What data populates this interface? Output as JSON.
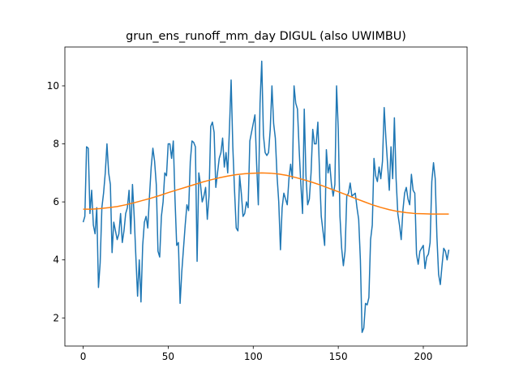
{
  "chart_data": {
    "type": "line",
    "title": "grun_ens_runoff_mm_day DIGUL (also UWIMBU)",
    "x": [
      0,
      1,
      2,
      3,
      4,
      5,
      6,
      7,
      8,
      9,
      10,
      11,
      12,
      13,
      14,
      15,
      16,
      17,
      18,
      19,
      20,
      21,
      22,
      23,
      24,
      25,
      26,
      27,
      28,
      29,
      30,
      31,
      32,
      33,
      34,
      35,
      36,
      37,
      38,
      39,
      40,
      41,
      42,
      43,
      44,
      45,
      46,
      47,
      48,
      49,
      50,
      51,
      52,
      53,
      54,
      55,
      56,
      57,
      58,
      59,
      60,
      61,
      62,
      63,
      64,
      65,
      66,
      67,
      68,
      69,
      70,
      71,
      72,
      73,
      74,
      75,
      76,
      77,
      78,
      79,
      80,
      81,
      82,
      83,
      84,
      85,
      86,
      87,
      88,
      89,
      90,
      91,
      92,
      93,
      94,
      95,
      96,
      97,
      98,
      99,
      100,
      101,
      102,
      103,
      104,
      105,
      106,
      107,
      108,
      109,
      110,
      111,
      112,
      113,
      114,
      115,
      116,
      117,
      118,
      119,
      120,
      121,
      122,
      123,
      124,
      125,
      126,
      127,
      128,
      129,
      130,
      131,
      132,
      133,
      134,
      135,
      136,
      137,
      138,
      139,
      140,
      141,
      142,
      143,
      144,
      145,
      146,
      147,
      148,
      149,
      150,
      151,
      152,
      153,
      154,
      155,
      156,
      157,
      158,
      159,
      160,
      161,
      162,
      163,
      164,
      165,
      166,
      167,
      168,
      169,
      170,
      171,
      172,
      173,
      174,
      175,
      176,
      177,
      178,
      179,
      180,
      181,
      182,
      183,
      184,
      185,
      186,
      187,
      188,
      189,
      190,
      191,
      192,
      193,
      194,
      195,
      196,
      197,
      198,
      199,
      200,
      201,
      202,
      203,
      204,
      205,
      206,
      207,
      208,
      209,
      210,
      211,
      212,
      213,
      214,
      215
    ],
    "series": [
      {
        "color": "#1f77b4",
        "values": [
          5.3,
          5.5,
          7.9,
          7.85,
          5.6,
          6.4,
          5.2,
          4.9,
          5.8,
          3.05,
          3.9,
          5.8,
          6.3,
          7.0,
          8.0,
          7.0,
          6.6,
          4.25,
          5.3,
          5.0,
          4.7,
          4.9,
          5.6,
          4.6,
          5.0,
          5.6,
          5.8,
          6.4,
          4.9,
          6.6,
          5.5,
          4.1,
          2.75,
          4.0,
          2.55,
          4.5,
          5.3,
          5.5,
          5.1,
          6.2,
          7.2,
          7.85,
          7.4,
          6.6,
          4.3,
          4.1,
          5.5,
          6.0,
          7.0,
          6.9,
          8.0,
          8.0,
          7.5,
          8.1,
          6.1,
          4.5,
          4.6,
          2.5,
          3.6,
          4.4,
          5.2,
          5.9,
          5.7,
          7.4,
          8.1,
          8.05,
          7.9,
          3.95,
          7.0,
          6.6,
          6.0,
          6.2,
          6.5,
          5.4,
          6.2,
          8.6,
          8.75,
          8.4,
          6.5,
          7.0,
          7.5,
          7.7,
          8.2,
          7.2,
          7.7,
          7.0,
          8.5,
          10.2,
          7.9,
          6.4,
          5.1,
          5.0,
          6.9,
          6.3,
          5.5,
          5.6,
          6.0,
          5.8,
          8.1,
          8.4,
          8.7,
          9.0,
          7.3,
          5.9,
          9.4,
          10.85,
          8.3,
          7.7,
          7.6,
          7.7,
          8.5,
          10.0,
          8.7,
          8.2,
          6.9,
          6.0,
          4.35,
          5.8,
          6.3,
          6.1,
          5.9,
          6.8,
          7.3,
          6.8,
          10.0,
          9.4,
          9.2,
          7.8,
          6.6,
          5.6,
          9.2,
          6.9,
          5.9,
          6.1,
          7.0,
          8.5,
          8.0,
          8.0,
          8.75,
          7.0,
          5.5,
          5.0,
          4.5,
          7.8,
          7.0,
          7.3,
          6.6,
          6.2,
          6.6,
          10.0,
          8.5,
          5.5,
          4.4,
          3.8,
          4.3,
          6.2,
          6.3,
          6.65,
          6.2,
          6.25,
          6.3,
          5.8,
          5.4,
          4.0,
          1.5,
          1.65,
          2.5,
          2.45,
          2.7,
          4.7,
          5.2,
          7.5,
          6.9,
          6.7,
          7.2,
          6.8,
          7.4,
          9.25,
          8.2,
          7.3,
          6.4,
          7.9,
          6.8,
          8.9,
          6.8,
          5.6,
          5.2,
          4.7,
          5.7,
          6.3,
          6.5,
          6.1,
          5.9,
          6.95,
          6.4,
          6.3,
          4.2,
          3.85,
          4.3,
          4.4,
          4.5,
          3.7,
          4.1,
          4.2,
          4.6,
          6.7,
          7.35,
          6.8,
          4.8,
          3.5,
          3.15,
          3.8,
          4.4,
          4.3,
          4.0,
          4.35
        ]
      },
      {
        "color": "#ff7f0e",
        "x": [
          0,
          5,
          10,
          15,
          20,
          25,
          30,
          35,
          40,
          45,
          50,
          55,
          60,
          65,
          70,
          75,
          80,
          85,
          90,
          95,
          100,
          105,
          110,
          115,
          120,
          125,
          130,
          135,
          140,
          145,
          150,
          155,
          160,
          165,
          170,
          175,
          180,
          185,
          190,
          195,
          200,
          205,
          210,
          215
        ],
        "values": [
          5.75,
          5.75,
          5.77,
          5.8,
          5.84,
          5.9,
          5.97,
          6.05,
          6.13,
          6.22,
          6.32,
          6.41,
          6.5,
          6.59,
          6.68,
          6.76,
          6.83,
          6.89,
          6.94,
          6.97,
          6.99,
          7.0,
          6.99,
          6.96,
          6.91,
          6.84,
          6.76,
          6.67,
          6.57,
          6.46,
          6.35,
          6.24,
          6.12,
          6.01,
          5.9,
          5.81,
          5.73,
          5.67,
          5.63,
          5.6,
          5.59,
          5.58,
          5.58,
          5.58
        ]
      }
    ],
    "xlim": [
      -10.75,
      225.75
    ],
    "ylim": [
      1.03,
      11.34
    ],
    "xticks": [
      0,
      50,
      100,
      150,
      200
    ],
    "yticks": [
      2,
      4,
      6,
      8,
      10
    ]
  }
}
